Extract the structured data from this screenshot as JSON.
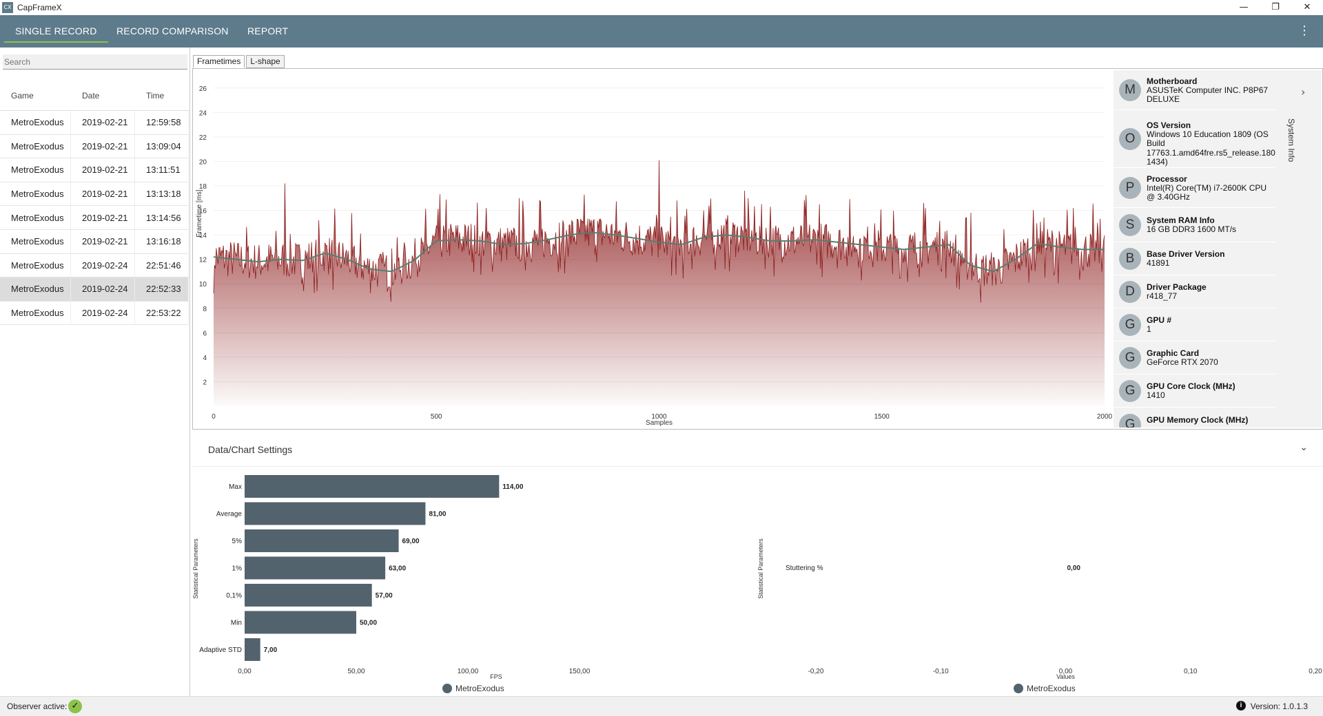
{
  "app": {
    "title": "CapFrameX",
    "icon": "CX"
  },
  "window_controls": {
    "minimize": "—",
    "maximize": "❐",
    "close": "✕"
  },
  "nav": {
    "tabs": [
      "SINGLE RECORD",
      "RECORD COMPARISON",
      "REPORT"
    ],
    "active": 0,
    "menu_icon": "⋮"
  },
  "search": {
    "placeholder": "Search"
  },
  "records": {
    "columns": [
      "Game",
      "Date",
      "Time"
    ],
    "rows": [
      [
        "MetroExodus",
        "2019-02-21",
        "12:59:58"
      ],
      [
        "MetroExodus",
        "2019-02-21",
        "13:09:04"
      ],
      [
        "MetroExodus",
        "2019-02-21",
        "13:11:51"
      ],
      [
        "MetroExodus",
        "2019-02-21",
        "13:13:18"
      ],
      [
        "MetroExodus",
        "2019-02-21",
        "13:14:56"
      ],
      [
        "MetroExodus",
        "2019-02-21",
        "13:16:18"
      ],
      [
        "MetroExodus",
        "2019-02-24",
        "22:51:46"
      ],
      [
        "MetroExodus",
        "2019-02-24",
        "22:52:33"
      ],
      [
        "MetroExodus",
        "2019-02-24",
        "22:53:22"
      ]
    ],
    "selected": 7
  },
  "chart_tabs": [
    "Frametimes",
    "L-shape"
  ],
  "system_info": {
    "side_label": "System Info",
    "items": [
      {
        "letter": "M",
        "label": "Motherboard",
        "value": "ASUSTeK Computer INC. P8P67 DELUXE"
      },
      {
        "letter": "O",
        "label": "OS Version",
        "value": "Windows 10 Education 1809 (OS Build 17763.1.amd64fre.rs5_release.180914-1434)"
      },
      {
        "letter": "P",
        "label": "Processor",
        "value": "Intel(R) Core(TM) i7-2600K CPU @ 3.40GHz"
      },
      {
        "letter": "S",
        "label": "System RAM Info",
        "value": "16 GB DDR3 1600 MT/s"
      },
      {
        "letter": "B",
        "label": "Base Driver Version",
        "value": "41891"
      },
      {
        "letter": "D",
        "label": "Driver Package",
        "value": "r418_77"
      },
      {
        "letter": "G",
        "label": "GPU #",
        "value": "1"
      },
      {
        "letter": "G",
        "label": "Graphic Card",
        "value": "GeForce RTX 2070"
      },
      {
        "letter": "G",
        "label": "GPU Core Clock (MHz)",
        "value": "1410"
      },
      {
        "letter": "G",
        "label": "GPU Memory Clock (MHz)",
        "value": ""
      }
    ]
  },
  "settings": {
    "label": "Data/Chart Settings",
    "chevron": "⌄"
  },
  "status": {
    "observer": "Observer active:",
    "check": "✓",
    "info": "i",
    "version": "Version: 1.0.1.3"
  },
  "colors": {
    "nav": "#5d7b8b",
    "accent": "#8bc34a",
    "bars": "#52636e",
    "frametime": "#8b1a1a",
    "average": "#5a7d6e"
  },
  "chart_data": [
    {
      "type": "line",
      "title": "",
      "xlabel": "Samples",
      "ylabel": "Frametime [ms]",
      "xlim": [
        0,
        2000
      ],
      "ylim": [
        0,
        27
      ],
      "xticks": [
        0,
        500,
        1000,
        1500,
        2000
      ],
      "yticks": [
        2,
        4,
        6,
        8,
        10,
        12,
        14,
        16,
        18,
        20,
        22,
        24,
        26
      ],
      "series": [
        {
          "values": [
            12.2,
            12.0,
            11.8,
            12.0,
            11.9,
            12.5,
            12.0,
            11.2,
            11.0,
            11.9,
            13.5,
            13.6,
            13.5,
            13.2,
            13.3,
            13.6,
            14.0,
            14.2,
            14.0,
            13.7,
            13.4,
            13.2,
            13.8,
            14.0,
            13.8,
            13.5,
            13.5,
            13.6,
            13.4,
            13.2,
            13.0,
            12.8,
            13.0,
            13.2,
            11.5,
            11.0,
            12.0,
            13.3,
            13.0,
            12.8,
            12.8
          ],
          "x_step": 50,
          "spikes": [
            [
              160,
              18.2
            ],
            [
              575,
              15.3
            ],
            [
              1000,
              20.1
            ],
            [
              1005,
              18.5
            ],
            [
              1100,
              16.0
            ],
            [
              1200,
              17.0
            ],
            [
              1250,
              16.3
            ],
            [
              1360,
              16.5
            ],
            [
              1700,
              15.8
            ],
            [
              1855,
              15.6
            ],
            [
              1930,
              16.2
            ]
          ]
        }
      ]
    },
    {
      "type": "bar",
      "orientation": "horizontal",
      "xlabel": "FPS",
      "ylabel": "Statistical Parameters",
      "xlim": [
        0,
        150
      ],
      "xticks": [
        "0,00",
        "50,00",
        "100,00",
        "150,00"
      ],
      "categories": [
        "Max",
        "Average",
        "5%",
        "1%",
        "0,1%",
        "Min",
        "Adaptive STD"
      ],
      "values": [
        114,
        81,
        69,
        63,
        57,
        50,
        7
      ],
      "labels": [
        "114,00",
        "81,00",
        "69,00",
        "63,00",
        "57,00",
        "50,00",
        "7,00"
      ],
      "legend": "MetroExodus"
    },
    {
      "type": "bar",
      "orientation": "horizontal",
      "xlabel": "Values",
      "ylabel": "Statistical Parameters",
      "xlim": [
        -0.2,
        0.2
      ],
      "xticks": [
        "-0,20",
        "-0,10",
        "0,00",
        "0,10",
        "0,20"
      ],
      "categories": [
        "Stuttering %"
      ],
      "values": [
        0
      ],
      "labels": [
        "0,00"
      ],
      "legend": "MetroExodus"
    }
  ]
}
